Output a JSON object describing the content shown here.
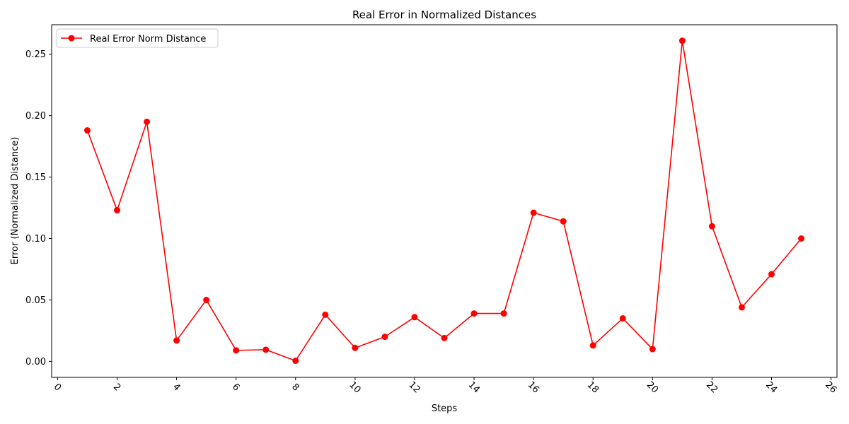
{
  "chart_data": {
    "type": "line",
    "title": "Real Error in Normalized Distances",
    "xlabel": "Steps",
    "ylabel": "Error (Normalized Distance)",
    "xlim": [
      -0.2,
      26.2
    ],
    "ylim": [
      -0.013,
      0.274
    ],
    "x_ticks": [
      0,
      2,
      4,
      6,
      8,
      10,
      12,
      14,
      16,
      18,
      20,
      22,
      24,
      26
    ],
    "y_ticks": [
      0.0,
      0.05,
      0.1,
      0.15,
      0.2,
      0.25
    ],
    "y_tick_labels": [
      "0.00",
      "0.05",
      "0.10",
      "0.15",
      "0.20",
      "0.25"
    ],
    "x_tick_rotation_deg": 45,
    "grid": false,
    "legend_position": "top-left",
    "series": [
      {
        "name": "Real Error Norm Distance",
        "color": "#ff0000",
        "marker": "circle",
        "x": [
          1,
          2,
          3,
          4,
          5,
          6,
          7,
          8,
          9,
          10,
          11,
          12,
          13,
          14,
          15,
          16,
          17,
          18,
          19,
          20,
          21,
          22,
          23,
          24,
          25
        ],
        "y": [
          0.188,
          0.123,
          0.195,
          0.017,
          0.05,
          0.009,
          0.0095,
          0.0005,
          0.038,
          0.011,
          0.02,
          0.036,
          0.019,
          0.039,
          0.039,
          0.121,
          0.114,
          0.013,
          0.035,
          0.01,
          0.261,
          0.11,
          0.044,
          0.071,
          0.1
        ]
      }
    ]
  }
}
